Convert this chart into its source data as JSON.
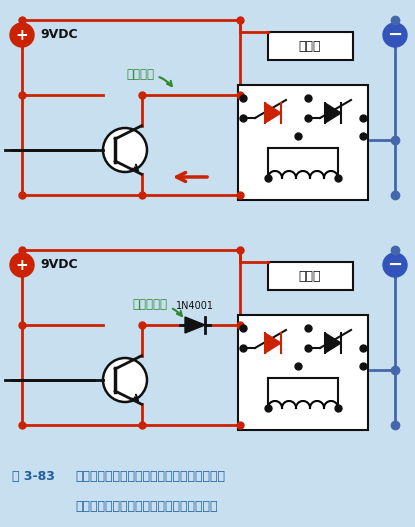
{
  "bg_color": "#adc8e0",
  "caption_bg": "#c8dff0",
  "wire_red": "#cc2200",
  "wire_blue": "#4466aa",
  "wire_black": "#111111",
  "label_9vdc": "9VDC",
  "label_alarm": "报警器",
  "label_current1": "电流回溯",
  "label_current2": "二极管阻流",
  "label_diode": "1N4001",
  "annotation_color": "#2d8a2d",
  "caption_title": "图 3-83",
  "caption_color": "#2060a0",
  "caption_line1": "可以添加一个二极管，当报警器锁定、晶体管",
  "caption_line2": "阻断时，二极管能防止电流反向流入晶体管"
}
